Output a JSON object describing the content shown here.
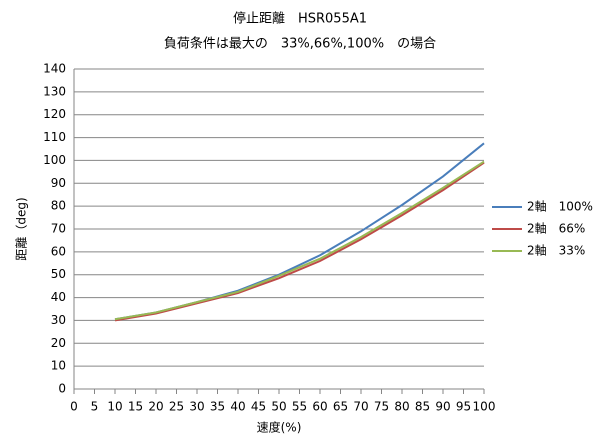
{
  "chart_data": {
    "type": "line",
    "title": "停止距離　HSR055A1",
    "subtitle": "負荷条件は最大の　33%,66%,100%　の場合",
    "x_label": "速度(%)",
    "y_label": "距離（deg)",
    "x": [
      10,
      20,
      30,
      40,
      50,
      60,
      70,
      80,
      90,
      100
    ],
    "series": [
      {
        "name": "2軸　100%",
        "color": "#4a7ebb",
        "values": [
          30.5,
          33.5,
          38,
          43,
          50,
          58.5,
          69,
          80.5,
          93,
          107.5
        ]
      },
      {
        "name": "2軸　66%",
        "color": "#be4b48",
        "values": [
          30,
          33,
          37.5,
          42,
          48.5,
          56,
          65.5,
          76,
          87,
          99
        ]
      },
      {
        "name": "2軸　33%",
        "color": "#98b954",
        "values": [
          30.5,
          33.5,
          38,
          42.5,
          49.5,
          57,
          66.5,
          77,
          88,
          99.5
        ]
      }
    ],
    "xlim": [
      0,
      100
    ],
    "xticks": [
      0,
      5,
      10,
      15,
      20,
      25,
      30,
      35,
      40,
      45,
      50,
      55,
      60,
      65,
      70,
      75,
      80,
      85,
      90,
      95,
      100
    ],
    "ylim": [
      0,
      140
    ],
    "yticks": [
      0,
      10,
      20,
      30,
      40,
      50,
      60,
      70,
      80,
      90,
      100,
      110,
      120,
      130,
      140
    ],
    "grid": true,
    "legend": "right"
  }
}
